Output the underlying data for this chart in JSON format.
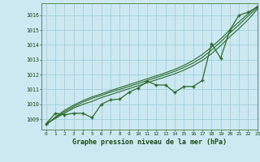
{
  "title": "Graphe pression niveau de la mer (hPa)",
  "bg_color": "#cce8f0",
  "grid_color": "#99ccd8",
  "line_color": "#2d6a2d",
  "xlim": [
    -0.5,
    23
  ],
  "ylim": [
    1008.3,
    1016.8
  ],
  "yticks": [
    1009,
    1010,
    1011,
    1012,
    1013,
    1014,
    1015,
    1016
  ],
  "xticks": [
    0,
    1,
    2,
    3,
    4,
    5,
    6,
    7,
    8,
    9,
    10,
    11,
    12,
    13,
    14,
    15,
    16,
    17,
    18,
    19,
    20,
    21,
    22,
    23
  ],
  "main_data": [
    1008.7,
    1009.4,
    1009.3,
    1009.4,
    1009.4,
    1009.1,
    1010.0,
    1010.3,
    1010.35,
    1010.8,
    1011.1,
    1011.55,
    1011.3,
    1011.3,
    1010.8,
    1011.2,
    1011.2,
    1011.6,
    1014.1,
    1013.1,
    1015.0,
    1016.0,
    1016.2,
    1016.55
  ],
  "smooth1": [
    1008.7,
    1009.05,
    1009.4,
    1009.75,
    1010.0,
    1010.2,
    1010.45,
    1010.65,
    1010.85,
    1011.05,
    1011.25,
    1011.45,
    1011.65,
    1011.85,
    1012.05,
    1012.3,
    1012.6,
    1012.95,
    1013.4,
    1013.95,
    1014.55,
    1015.1,
    1015.7,
    1016.4
  ],
  "smooth2": [
    1008.65,
    1009.1,
    1009.5,
    1009.85,
    1010.15,
    1010.4,
    1010.6,
    1010.82,
    1011.0,
    1011.2,
    1011.4,
    1011.6,
    1011.8,
    1012.0,
    1012.22,
    1012.48,
    1012.78,
    1013.15,
    1013.65,
    1014.2,
    1014.8,
    1015.35,
    1015.95,
    1016.5
  ],
  "smooth3": [
    1008.6,
    1009.15,
    1009.6,
    1009.95,
    1010.25,
    1010.5,
    1010.7,
    1010.92,
    1011.12,
    1011.32,
    1011.52,
    1011.72,
    1011.92,
    1012.12,
    1012.35,
    1012.62,
    1012.95,
    1013.35,
    1013.85,
    1014.4,
    1015.0,
    1015.55,
    1016.1,
    1016.6
  ]
}
